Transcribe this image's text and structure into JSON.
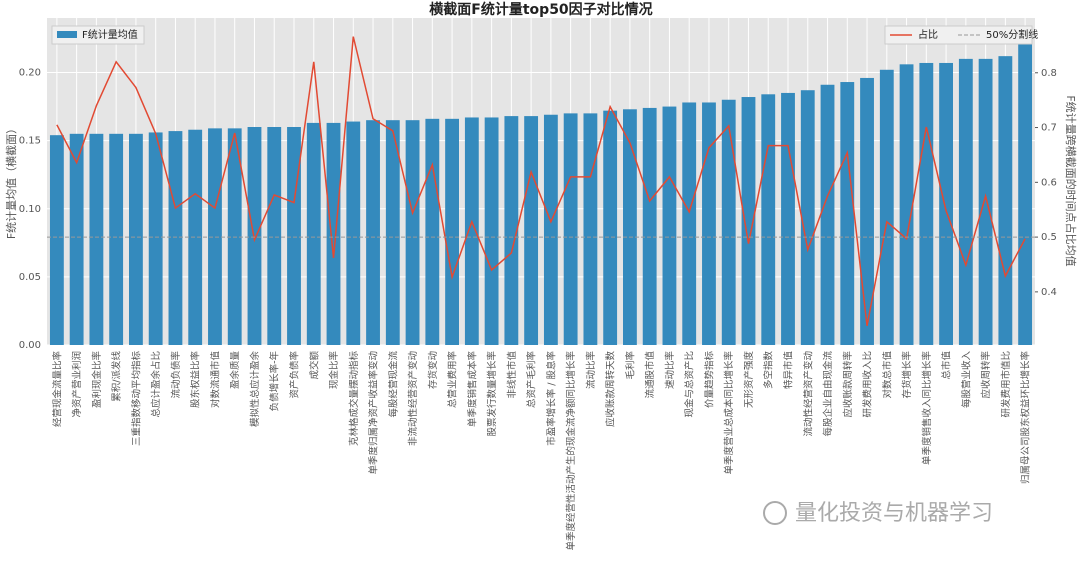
{
  "chart_data": {
    "type": "bar_line",
    "title": "横截面F统计量top50因子对比情况",
    "ylabel": "F统计量均值（横截面）",
    "y2label": "F统计量跨横截面的时间点占比均值",
    "watermark": "量化投资与机器学习",
    "categories": [
      "经营现金流量比率",
      "净资产营业利润",
      "盈利现金比率",
      "累积/派发线",
      "三重指数移动平均指标",
      "总应计盈余占比",
      "流动负债率",
      "股东权益比率",
      "对数流通市值",
      "盈余质量",
      "模拟性总应计盈余",
      "负债增长率-年",
      "资产负债率",
      "成交额",
      "现金比率",
      "克林格成交量摆动指标",
      "单季度归属净资产收益率变动",
      "每股经营现金流",
      "非流动性经营资产变动",
      "存货变动",
      "总营业费用率",
      "单季度销售成本率",
      "股票发行数量增长率",
      "非线性市值",
      "总资产毛利率",
      "市盈率增长率 / 股息率",
      "单季度经营性活动产生的现金流净额同比增长率",
      "流动比率",
      "应收账款周转天数",
      "毛利率",
      "流通股市值",
      "速动比率",
      "现金与总资产比",
      "价量趋势指标",
      "单季度营业总成本同比增长率",
      "无形资产强度",
      "多空指数",
      "特异市值",
      "流动性经营资产变动",
      "每股企业自由现金流",
      "应收账款周转率",
      "研发费用收入比",
      "对数总市值",
      "存货增长率",
      "单季度销售收入同比增长率",
      "总市值",
      "每股营业收入",
      "应收周转率",
      "研发费用市值比",
      "归属母公司股东权益环比增长率"
    ],
    "series": [
      {
        "name": "F统计量均值",
        "type": "bar",
        "color": "#348abd",
        "values": [
          0.154,
          0.155,
          0.155,
          0.155,
          0.155,
          0.156,
          0.157,
          0.158,
          0.159,
          0.159,
          0.16,
          0.16,
          0.16,
          0.163,
          0.163,
          0.164,
          0.165,
          0.165,
          0.165,
          0.166,
          0.166,
          0.167,
          0.167,
          0.168,
          0.168,
          0.169,
          0.17,
          0.17,
          0.172,
          0.173,
          0.174,
          0.175,
          0.178,
          0.178,
          0.18,
          0.182,
          0.184,
          0.185,
          0.187,
          0.191,
          0.193,
          0.196,
          0.202,
          0.206,
          0.207,
          0.207,
          0.21,
          0.21,
          0.212,
          0.222
        ]
      },
      {
        "name": "占比",
        "type": "line",
        "axis": "y2",
        "color": "#e24a33",
        "values": [
          0.705,
          0.636,
          0.74,
          0.82,
          0.773,
          0.689,
          0.553,
          0.579,
          0.553,
          0.69,
          0.495,
          0.577,
          0.563,
          0.82,
          0.462,
          0.866,
          0.716,
          0.694,
          0.544,
          0.632,
          0.427,
          0.528,
          0.44,
          0.471,
          0.619,
          0.528,
          0.61,
          0.61,
          0.738,
          0.672,
          0.566,
          0.61,
          0.546,
          0.663,
          0.703,
          0.488,
          0.667,
          0.667,
          0.477,
          0.575,
          0.654,
          0.338,
          0.528,
          0.497,
          0.701,
          0.548,
          0.449,
          0.575,
          0.429,
          0.497
        ]
      }
    ],
    "hline": {
      "name": "50%分割线",
      "value": 0.5,
      "axis": "y2",
      "color": "#999999"
    },
    "ylim": [
      0,
      0.24
    ],
    "yticks": [
      {
        "value": 0,
        "label": "0.00"
      },
      {
        "value": 0.05,
        "label": "0.05"
      },
      {
        "value": 0.1,
        "label": "0.10"
      },
      {
        "value": 0.15,
        "label": "0.15"
      },
      {
        "value": 0.2,
        "label": "0.20"
      }
    ],
    "y2lim": [
      0.303,
      0.9
    ],
    "y2ticks": [
      0.4,
      0.5,
      0.6,
      0.7,
      0.8
    ],
    "grid": true
  }
}
